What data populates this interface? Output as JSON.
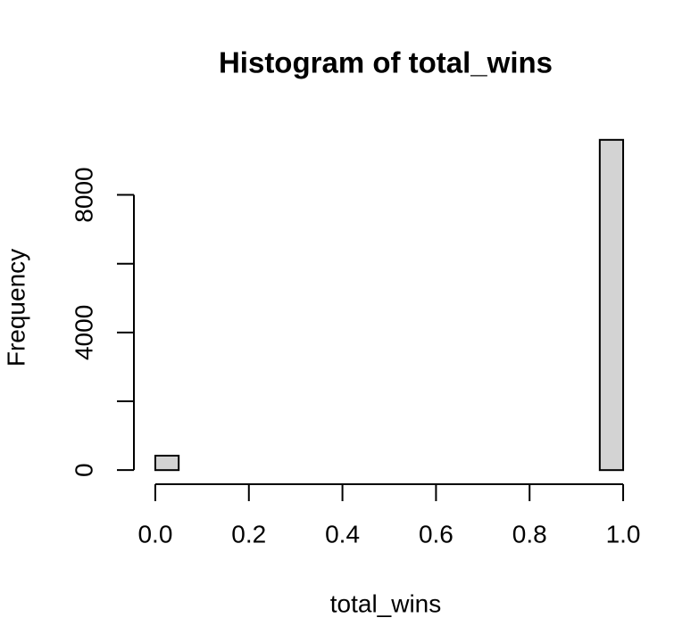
{
  "chart_data": {
    "type": "histogram",
    "title": "Histogram of total_wins",
    "x_label": "total_wins",
    "y_label": "Frequency",
    "bins": [
      0,
      0.05,
      0.1,
      0.15,
      0.2,
      0.25,
      0.3,
      0.35,
      0.4,
      0.45,
      0.5,
      0.55,
      0.6,
      0.65,
      0.7,
      0.75,
      0.8,
      0.85,
      0.9,
      0.95,
      1
    ],
    "values": [
      420,
      0,
      0,
      0,
      0,
      0,
      0,
      0,
      0,
      0,
      0,
      0,
      0,
      0,
      0,
      0,
      0,
      0,
      0,
      9600
    ],
    "color": "#d3d3d3",
    "xlim": [
      -0.04,
      1.04
    ],
    "ylim": [
      -384,
      9984
    ],
    "xticks": [
      {
        "value": 0,
        "label": "0.0"
      },
      0.2,
      0.4,
      0.6,
      0.8,
      {
        "value": 1,
        "label": "1.0"
      }
    ],
    "yticks": [
      0,
      2000,
      4000,
      6000,
      8000
    ]
  }
}
